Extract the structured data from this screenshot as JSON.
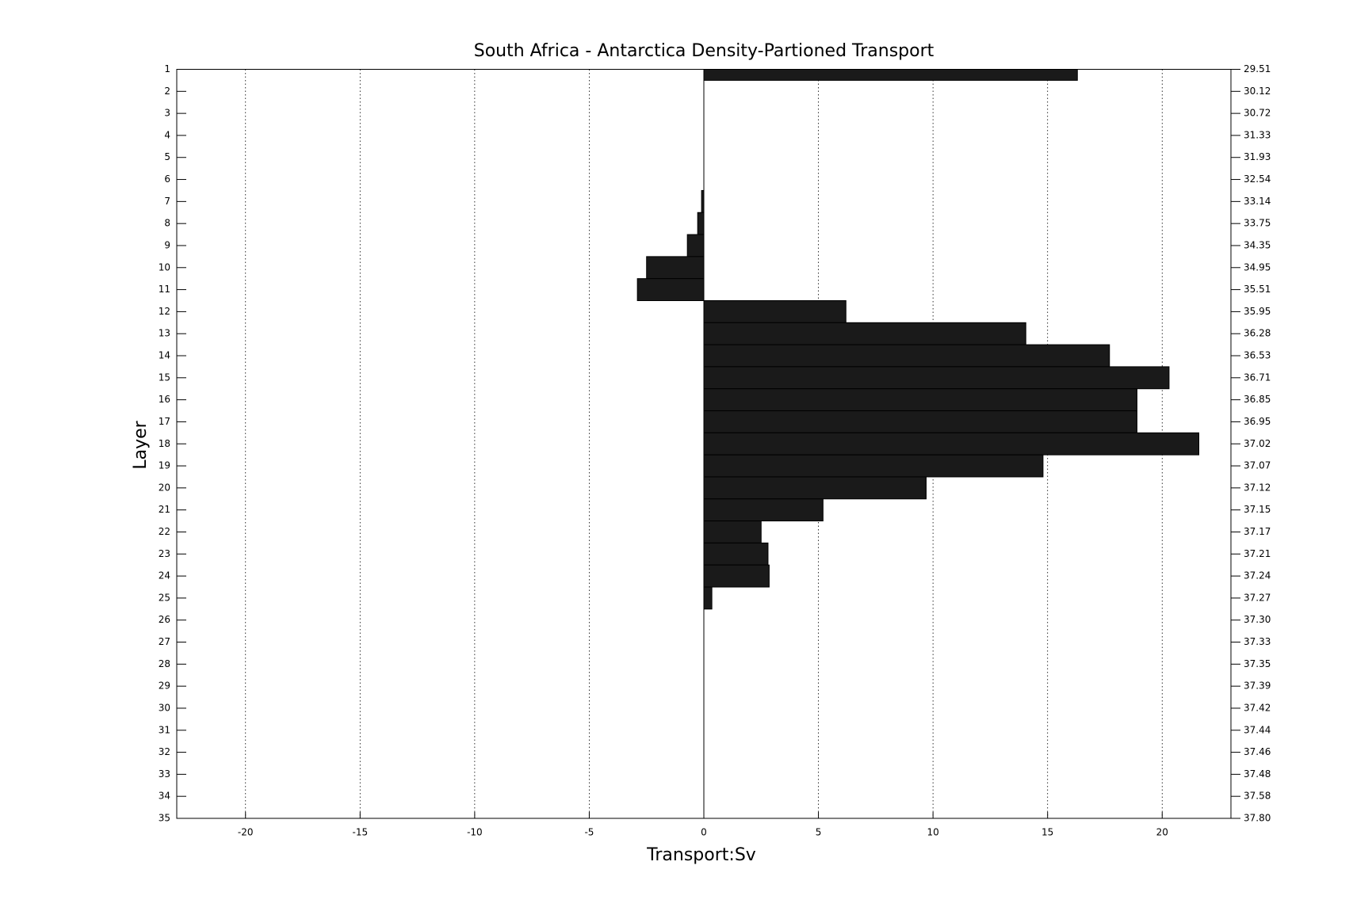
{
  "chart_data": {
    "type": "barh",
    "title": "South Africa - Antarctica Density-Partioned Transport",
    "x_label": "Transport:Sv",
    "y_label": "Layer",
    "layers": [
      1,
      2,
      3,
      4,
      5,
      6,
      7,
      8,
      9,
      10,
      11,
      12,
      13,
      14,
      15,
      16,
      17,
      18,
      19,
      20,
      21,
      22,
      23,
      24,
      25,
      26,
      27,
      28,
      29,
      30,
      31,
      32,
      33,
      34,
      35
    ],
    "values": [
      16.3,
      0,
      0,
      0,
      0,
      0,
      -0.1,
      -0.27,
      -0.72,
      -2.5,
      -2.9,
      6.2,
      14.05,
      17.7,
      20.3,
      18.9,
      18.9,
      21.6,
      14.8,
      9.7,
      5.2,
      2.5,
      2.8,
      2.85,
      0.35,
      0,
      0,
      0,
      0,
      0,
      0,
      0,
      0,
      0,
      0
    ],
    "color": "#1a1a1a",
    "xlim": [
      -23,
      23
    ],
    "xticks": [
      -20,
      -15,
      -10,
      -5,
      0,
      5,
      10,
      15,
      20
    ],
    "ylim": [
      1,
      35
    ],
    "yticks": [
      1,
      2,
      3,
      4,
      5,
      6,
      7,
      8,
      9,
      10,
      11,
      12,
      13,
      14,
      15,
      16,
      17,
      18,
      19,
      20,
      21,
      22,
      23,
      24,
      25,
      26,
      27,
      28,
      29,
      30,
      31,
      32,
      33,
      34,
      35
    ],
    "y2_labels": [
      "29.51",
      "30.12",
      "30.72",
      "31.33",
      "31.93",
      "32.54",
      "33.14",
      "33.75",
      "34.35",
      "34.95",
      "35.51",
      "35.95",
      "36.28",
      "36.53",
      "36.71",
      "36.85",
      "36.95",
      "37.02",
      "37.07",
      "37.12",
      "37.15",
      "37.17",
      "37.21",
      "37.24",
      "37.27",
      "37.30",
      "37.33",
      "37.35",
      "37.39",
      "37.42",
      "37.44",
      "37.46",
      "37.48",
      "37.58",
      "37.80"
    ],
    "grid": true
  }
}
